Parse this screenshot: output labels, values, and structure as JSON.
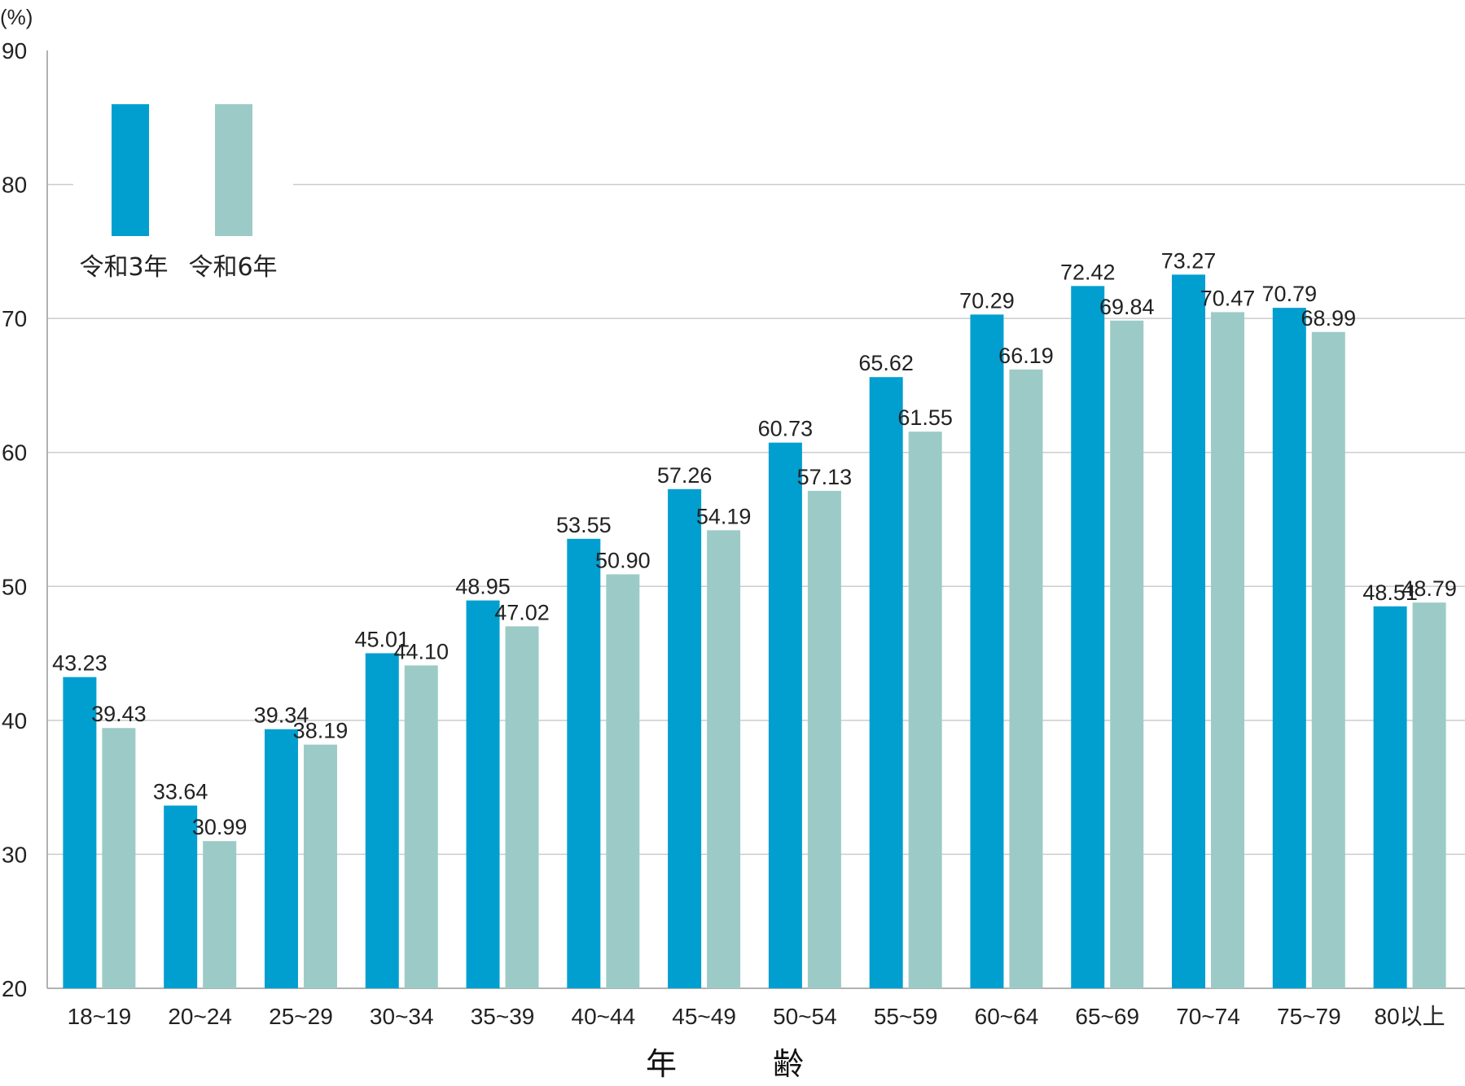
{
  "chart_data": {
    "type": "bar",
    "unit_label": "(%)",
    "xlabel": "年　齢",
    "ylim": [
      20,
      90
    ],
    "yticks": [
      20,
      30,
      40,
      50,
      60,
      70,
      80,
      90
    ],
    "grid": true,
    "legend_position": "top-left",
    "categories": [
      "18~19",
      "20~24",
      "25~29",
      "30~34",
      "35~39",
      "40~44",
      "45~49",
      "50~54",
      "55~59",
      "60~64",
      "65~69",
      "70~74",
      "75~79",
      "80以上"
    ],
    "series": [
      {
        "name": "令和3年",
        "color": "#009fd0",
        "values": [
          43.23,
          33.64,
          39.34,
          45.01,
          48.95,
          53.55,
          57.26,
          60.73,
          65.62,
          70.29,
          72.42,
          73.27,
          70.79,
          48.51
        ],
        "labels": [
          "43.23",
          "33.64",
          "39.34",
          "45.01",
          "48.95",
          "53.55",
          "57.26",
          "60.73",
          "65.62",
          "70.29",
          "72.42",
          "73.27",
          "70.79",
          "48.51"
        ]
      },
      {
        "name": "令和6年",
        "color": "#9ccbc7",
        "values": [
          39.43,
          30.99,
          38.19,
          44.1,
          47.02,
          50.9,
          54.19,
          57.13,
          61.55,
          66.19,
          69.84,
          70.47,
          68.99,
          48.79
        ],
        "labels": [
          "39.43",
          "30.99",
          "38.19",
          "44.10",
          "47.02",
          "50.90",
          "54.19",
          "57.13",
          "61.55",
          "66.19",
          "69.84",
          "70.47",
          "68.99",
          "48.79"
        ]
      }
    ]
  }
}
